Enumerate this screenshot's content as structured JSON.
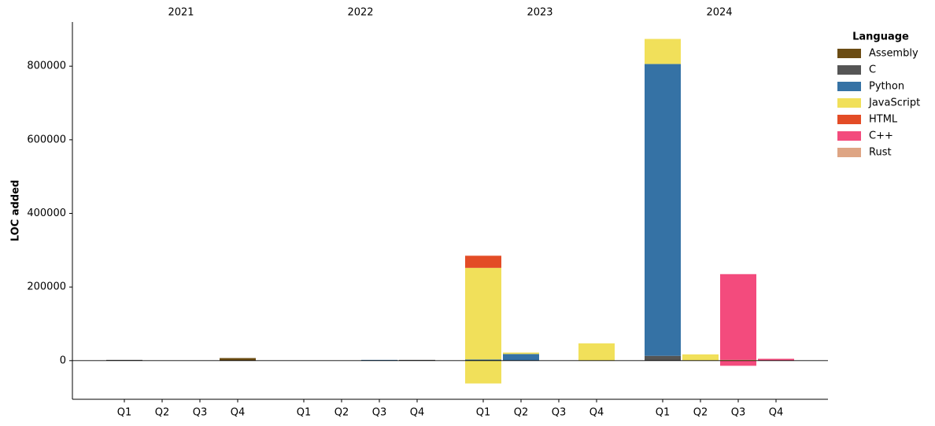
{
  "chart_data": {
    "type": "stacked-bar",
    "ylabel": "LOC added",
    "legend_title": "Language",
    "legend_position": "upper right",
    "groups": [
      "2021",
      "2022",
      "2023",
      "2024"
    ],
    "categories": [
      "Q1",
      "Q2",
      "Q3",
      "Q4",
      "Q1",
      "Q2",
      "Q3",
      "Q4",
      "Q1",
      "Q2",
      "Q3",
      "Q4",
      "Q1",
      "Q2",
      "Q3",
      "Q4"
    ],
    "ylim": [
      -105000,
      920000
    ],
    "yticks": [
      0,
      200000,
      400000,
      600000,
      800000
    ],
    "series": [
      {
        "name": "Assembly",
        "color": "#6b4c14",
        "values": [
          null,
          null,
          null,
          7000,
          null,
          null,
          null,
          null,
          null,
          null,
          null,
          null,
          null,
          null,
          null,
          null
        ],
        "negative_values": [
          null,
          null,
          null,
          null,
          null,
          null,
          null,
          null,
          null,
          null,
          null,
          null,
          null,
          null,
          null,
          null
        ]
      },
      {
        "name": "C",
        "color": "#555555",
        "values": [
          2000,
          null,
          null,
          null,
          null,
          null,
          null,
          2000,
          null,
          null,
          null,
          null,
          13000,
          null,
          null,
          null
        ],
        "negative_values": [
          null,
          null,
          null,
          null,
          null,
          null,
          null,
          null,
          null,
          null,
          null,
          null,
          null,
          null,
          null,
          null
        ]
      },
      {
        "name": "Python",
        "color": "#3572a5",
        "values": [
          null,
          null,
          null,
          null,
          null,
          null,
          2000,
          null,
          3000,
          18000,
          null,
          null,
          793000,
          null,
          null,
          null
        ],
        "negative_values": [
          null,
          null,
          null,
          null,
          null,
          null,
          null,
          null,
          null,
          null,
          null,
          null,
          null,
          null,
          null,
          null
        ]
      },
      {
        "name": "JavaScript",
        "color": "#f1e05a",
        "values": [
          null,
          null,
          null,
          null,
          null,
          null,
          null,
          null,
          249000,
          4000,
          null,
          47000,
          68000,
          17000,
          2000,
          null
        ],
        "negative_values": [
          null,
          null,
          null,
          null,
          null,
          null,
          null,
          null,
          -62000,
          null,
          null,
          null,
          null,
          null,
          null,
          null
        ]
      },
      {
        "name": "HTML",
        "color": "#e34c26",
        "values": [
          null,
          null,
          null,
          null,
          null,
          null,
          null,
          null,
          33000,
          null,
          null,
          null,
          null,
          null,
          null,
          null
        ],
        "negative_values": [
          null,
          null,
          null,
          null,
          null,
          null,
          null,
          null,
          null,
          null,
          null,
          null,
          null,
          null,
          null,
          null
        ]
      },
      {
        "name": "C++",
        "color": "#f34b7d",
        "values": [
          null,
          null,
          null,
          null,
          null,
          null,
          null,
          null,
          null,
          null,
          null,
          null,
          null,
          null,
          233000,
          5000
        ],
        "negative_values": [
          null,
          null,
          null,
          null,
          null,
          null,
          null,
          null,
          null,
          null,
          null,
          null,
          null,
          null,
          -14000,
          null
        ]
      },
      {
        "name": "Rust",
        "color": "#dea584",
        "values": [
          null,
          null,
          null,
          null,
          null,
          null,
          null,
          null,
          null,
          null,
          null,
          null,
          null,
          null,
          null,
          null
        ],
        "negative_values": [
          null,
          null,
          null,
          null,
          null,
          null,
          null,
          null,
          null,
          null,
          null,
          null,
          null,
          null,
          null,
          null
        ]
      }
    ]
  }
}
